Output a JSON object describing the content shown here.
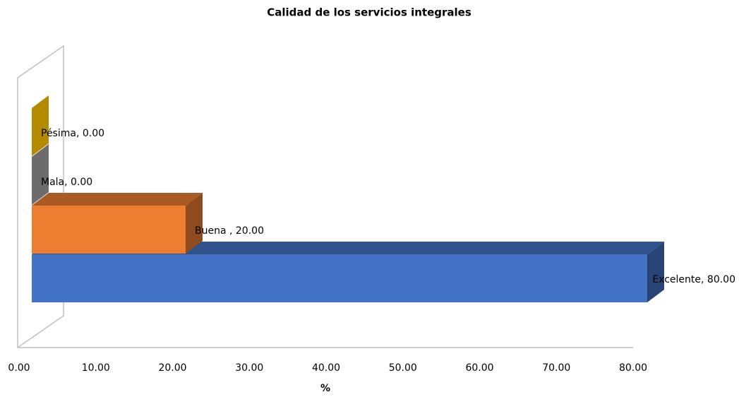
{
  "chart_data": {
    "type": "bar3d_horizontal",
    "title": "Calidad de los servicios integrales",
    "x_label": "%",
    "categories": [
      "Excelente",
      "Buena",
      "Mala",
      "Pésima"
    ],
    "values": [
      80,
      20,
      0,
      0
    ],
    "value_labels": [
      "Excelente, 80.00",
      "Buena , 20.00",
      "Mala, 0.00",
      "Pésima, 0.00"
    ],
    "colors": [
      "#4472c4",
      "#ed7d31",
      "#7f7f7f",
      "#d4a200"
    ],
    "xlim": [
      0,
      80
    ],
    "xticks": [
      {
        "value": 0,
        "label": "0.00"
      },
      {
        "value": 10,
        "label": "10.00"
      },
      {
        "value": 20,
        "label": "20.00"
      },
      {
        "value": 30,
        "label": "30.00"
      },
      {
        "value": 40,
        "label": "40.00"
      },
      {
        "value": 50,
        "label": "50.00"
      },
      {
        "value": 60,
        "label": "60.00"
      },
      {
        "value": 70,
        "label": "70.00"
      },
      {
        "value": 80,
        "label": "80.00"
      }
    ],
    "grid": false
  }
}
